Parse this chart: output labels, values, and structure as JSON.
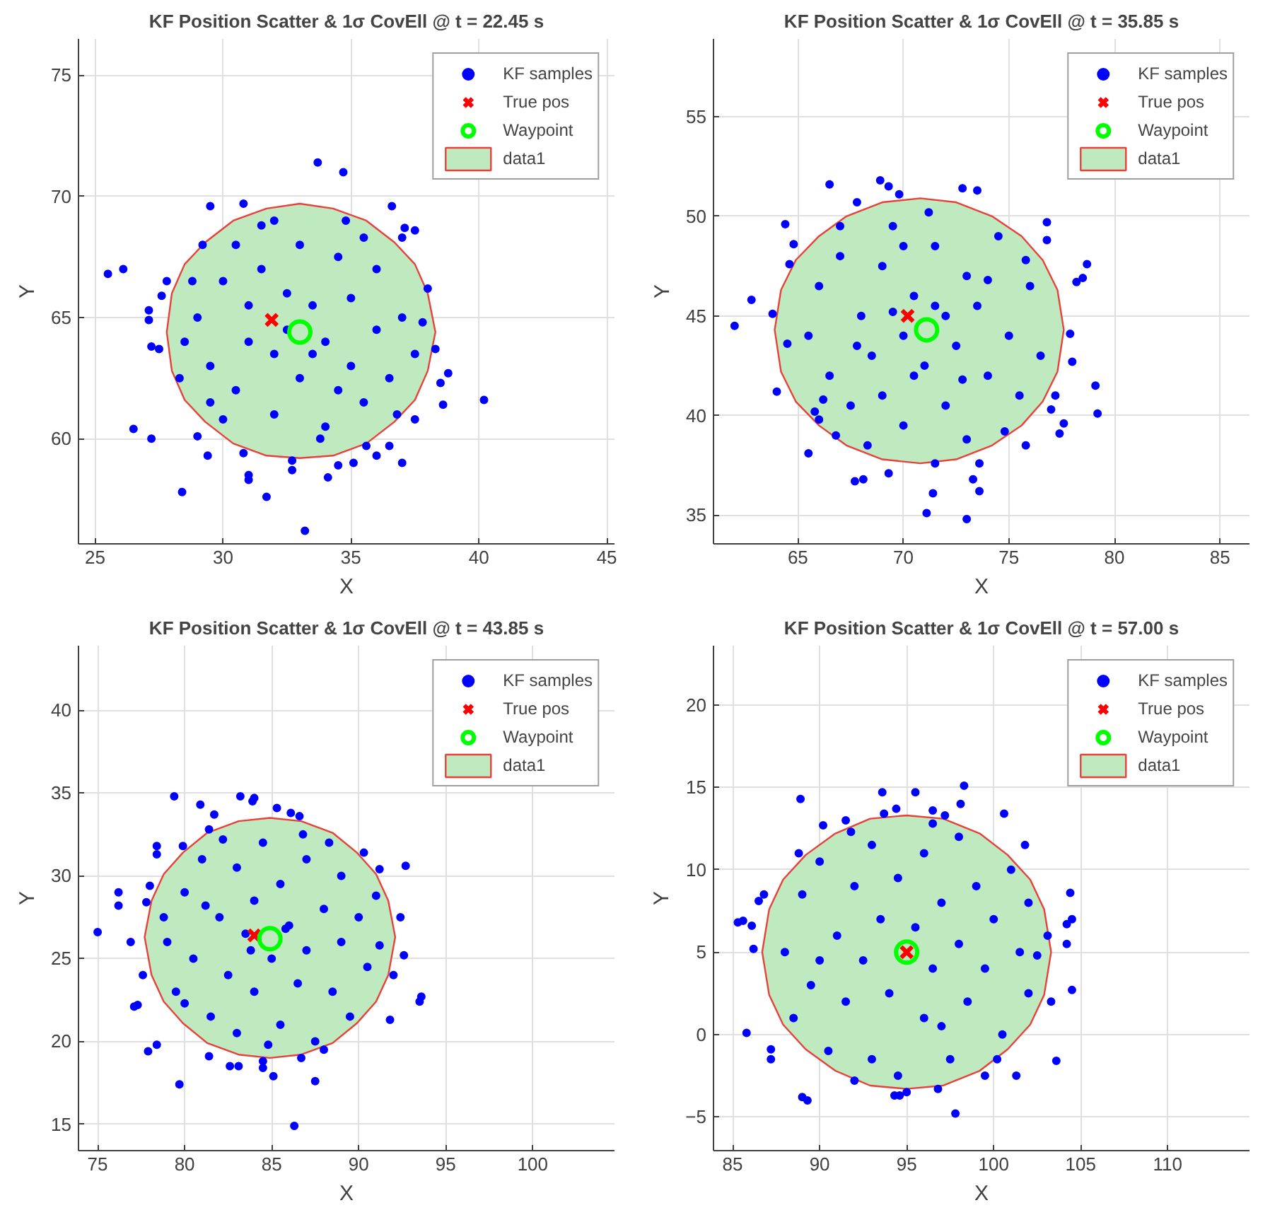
{
  "chart_data": [
    {
      "type": "scatter",
      "title": "KF Position Scatter & 1σ CovEll @ t = 22.45 s",
      "xlabel": "X",
      "ylabel": "Y",
      "xlim": [
        24.35,
        45.3
      ],
      "ylim": [
        55.66,
        76.5
      ],
      "xticks": [
        25,
        30,
        35,
        40,
        45
      ],
      "yticks": [
        60,
        65,
        70,
        75
      ],
      "grid": true,
      "legend": "top right",
      "series": [
        {
          "name": "KF samples",
          "color": "#0000ff",
          "marker": "circle",
          "x": [
            25.5,
            26.1,
            26.5,
            27.1,
            27.1,
            27.2,
            27.2,
            27.5,
            27.6,
            27.8,
            28.4,
            29.0,
            29.4,
            29.5,
            29.2,
            30.8,
            30.8,
            31.0,
            31.0,
            31.7,
            32.7,
            32.7,
            33.2,
            33.7,
            34.1,
            34.5,
            34.7,
            35.1,
            35.6,
            36.0,
            36.5,
            36.6,
            37.0,
            37.0,
            37.1,
            37.5,
            37.5,
            38.0,
            38.3,
            38.5,
            38.6,
            38.8,
            40.2,
            29,
            29.5,
            30,
            30.5,
            31,
            31.5,
            32,
            32,
            32.5,
            33,
            33,
            33.5,
            34,
            34,
            34.5,
            35,
            35,
            35.5,
            36,
            36,
            36.5,
            37,
            37.5,
            28.5,
            28.8,
            30,
            31.5,
            34.8,
            36.8,
            37.8,
            32.5,
            33.5,
            31,
            34.5,
            30.5,
            32,
            33.8,
            35.5,
            28.3,
            29.5
          ],
          "values": [
            66.8,
            67.0,
            60.4,
            65.3,
            64.9,
            60.0,
            63.8,
            63.7,
            65.9,
            66.5,
            57.8,
            60.1,
            59.3,
            69.6,
            68.0,
            69.7,
            59.4,
            58.5,
            58.3,
            57.6,
            58.7,
            59.1,
            56.2,
            71.4,
            58.4,
            58.9,
            71.0,
            59.0,
            59.7,
            59.3,
            59.7,
            69.6,
            59.0,
            68.3,
            68.7,
            68.6,
            60.8,
            66.2,
            63.7,
            62.3,
            61.4,
            62.7,
            61.6,
            65,
            63,
            66.5,
            62,
            64,
            67,
            61,
            63.5,
            66,
            68,
            62.5,
            65.5,
            64,
            60.5,
            67.5,
            63,
            65.8,
            61.5,
            64.5,
            67,
            62.5,
            65,
            63.5,
            64,
            66.5,
            60.8,
            68.8,
            69,
            61,
            64.8,
            64.5,
            63.5,
            65.5,
            62,
            68,
            69,
            60,
            68.3,
            62.5,
            61.5
          ]
        },
        {
          "name": "True pos",
          "color": "#ff0000",
          "marker": "cross",
          "x": [
            31.9
          ],
          "values": [
            64.9
          ]
        },
        {
          "name": "Waypoint",
          "color": "#00ff00",
          "marker": "circle",
          "x": [
            33.0
          ],
          "values": [
            64.4
          ]
        },
        {
          "name": "data1",
          "type": "area",
          "color": "#bfeabf",
          "x": [
            27.8,
            28.0,
            28.5,
            29.3,
            30.4,
            31.7,
            33,
            34.3,
            35.6,
            36.7,
            37.5,
            38.0,
            38.3,
            38.0,
            37.5,
            36.7,
            35.6,
            34.3,
            33,
            31.7,
            30.4,
            29.3,
            28.5,
            28.0
          ],
          "values": [
            64.4,
            66.0,
            67.2,
            68.1,
            69.0,
            69.5,
            69.7,
            69.5,
            69.0,
            68.1,
            67.2,
            66.0,
            64.4,
            62.8,
            61.6,
            60.7,
            59.8,
            59.3,
            59.2,
            59.3,
            59.8,
            60.7,
            61.6,
            62.8
          ]
        }
      ]
    },
    {
      "type": "scatter",
      "title": "KF Position Scatter & 1σ CovEll @ t = 35.85 s",
      "xlabel": "X",
      "ylabel": "Y",
      "xlim": [
        61.0,
        86.4
      ],
      "ylim": [
        33.56,
        58.9
      ],
      "xticks": [
        65,
        70,
        75,
        80,
        85
      ],
      "yticks": [
        35,
        40,
        45,
        50,
        55
      ],
      "grid": true,
      "legend": "top right",
      "series": [
        {
          "name": "KF samples",
          "color": "#0000ff",
          "marker": "circle",
          "x": [
            62,
            62.8,
            63.8,
            64,
            64.4,
            64.5,
            64.8,
            64.6,
            65.5,
            65.8,
            66.0,
            66.5,
            66.8,
            67.7,
            67.8,
            68.1,
            68.9,
            69.3,
            69.3,
            69.8,
            71.1,
            71.4,
            71.5,
            72.8,
            73.0,
            73.3,
            73.6,
            73.6,
            73.5,
            75.8,
            76.8,
            76.8,
            77.0,
            77.2,
            77.4,
            77.6,
            77.9,
            78.0,
            78.2,
            78.5,
            78.7,
            79.1,
            79.2,
            65.5,
            66,
            66.5,
            67,
            67.5,
            68,
            68.5,
            69,
            69,
            69.5,
            70,
            70,
            70.5,
            71,
            71.5,
            72,
            72,
            72.5,
            73,
            73,
            73.5,
            74,
            74.5,
            75,
            75.5,
            76,
            76.5,
            66.2,
            67,
            68.3,
            71.2,
            74.8,
            75.8,
            70.5,
            71.5,
            69.5,
            72.8,
            67.8,
            74,
            70
          ],
          "values": [
            44.5,
            45.8,
            45.1,
            41.2,
            49.6,
            43.6,
            48.6,
            47.6,
            38.1,
            40.2,
            39.8,
            51.6,
            39.0,
            36.7,
            50.7,
            36.8,
            51.8,
            37.1,
            51.5,
            51.1,
            35.1,
            36.1,
            37.6,
            51.4,
            34.8,
            36.8,
            37.6,
            36.2,
            51.3,
            38.5,
            49.7,
            48.8,
            40.3,
            41.0,
            39.1,
            39.6,
            44.1,
            42.7,
            46.7,
            46.9,
            47.6,
            41.5,
            40.1,
            44,
            46.5,
            42,
            48,
            40.5,
            45,
            43,
            47.5,
            41,
            49.5,
            44,
            39.5,
            46,
            42.5,
            48.5,
            45,
            40.5,
            43.5,
            47,
            38.8,
            45.5,
            42,
            49,
            44,
            41,
            46.5,
            43,
            40.8,
            49.5,
            38.5,
            50.2,
            39.2,
            47.8,
            42,
            45.5,
            45.2,
            41.8,
            43.5,
            46.8,
            48.5
          ]
        },
        {
          "name": "True pos",
          "color": "#ff0000",
          "marker": "cross",
          "x": [
            70.2
          ],
          "values": [
            45.0
          ]
        },
        {
          "name": "Waypoint",
          "color": "#00ff00",
          "marker": "circle",
          "x": [
            71.1
          ],
          "values": [
            44.3
          ]
        },
        {
          "name": "data1",
          "type": "area",
          "color": "#bfeabf",
          "x": [
            63.9,
            64.2,
            64.9,
            66.0,
            67.3,
            69.0,
            70.8,
            72.5,
            74.2,
            75.6,
            76.6,
            77.3,
            77.6,
            77.3,
            76.6,
            75.6,
            74.2,
            72.5,
            70.8,
            69.0,
            67.3,
            66.0,
            64.9,
            64.2
          ],
          "values": [
            44.3,
            46.3,
            47.8,
            49.0,
            50.0,
            50.7,
            50.9,
            50.7,
            50.0,
            49.0,
            47.8,
            46.3,
            44.3,
            42.2,
            40.7,
            39.5,
            38.5,
            37.8,
            37.6,
            37.8,
            38.5,
            39.5,
            40.7,
            42.2
          ]
        }
      ]
    },
    {
      "type": "scatter",
      "title": "KF Position Scatter & 1σ CovEll @ t = 43.85 s",
      "xlabel": "X",
      "ylabel": "Y",
      "xlim": [
        73.9,
        104.7
      ],
      "ylim": [
        13.4,
        43.9
      ],
      "xticks": [
        75,
        80,
        85,
        90,
        95,
        100
      ],
      "yticks": [
        15,
        20,
        25,
        30,
        35,
        40
      ],
      "grid": true,
      "legend": "top right",
      "series": [
        {
          "name": "KF samples",
          "color": "#0000ff",
          "marker": "circle",
          "x": [
            75.0,
            76.2,
            76.2,
            76.9,
            77.1,
            77.3,
            77.6,
            77.8,
            78.0,
            77.9,
            78.4,
            78.4,
            78.4,
            79.4,
            79.7,
            79.9,
            80.9,
            81.4,
            81.4,
            81.7,
            82.6,
            83.1,
            83.2,
            83.9,
            84.0,
            84.5,
            84.5,
            85.1,
            85.3,
            86.1,
            86.3,
            86.6,
            86.7,
            87.5,
            88.0,
            90.3,
            91.2,
            91.8,
            92.0,
            92.4,
            92.6,
            92.7,
            93.5,
            93.6,
            79,
            79.5,
            80,
            80.5,
            81,
            81.5,
            82,
            82.5,
            83,
            83,
            83.5,
            84,
            84,
            84.5,
            85,
            85.5,
            85.5,
            86,
            86.5,
            87,
            87,
            87.5,
            88,
            88.5,
            89,
            89,
            89.5,
            90,
            90.5,
            91,
            80,
            81.2,
            84.8,
            86.8,
            88.3,
            82.2,
            83.8,
            85.8,
            78.8,
            91.2
          ],
          "values": [
            26.6,
            29.0,
            28.2,
            26.0,
            22.1,
            22.2,
            24.0,
            28.4,
            29.4,
            19.4,
            19.8,
            31.8,
            31.3,
            34.8,
            17.4,
            31.8,
            34.3,
            19.1,
            32.8,
            33.7,
            18.5,
            18.5,
            34.8,
            34.5,
            34.7,
            18.8,
            18.4,
            17.9,
            34.1,
            33.8,
            14.9,
            33.6,
            19.0,
            17.6,
            19.5,
            31.4,
            30.4,
            21.3,
            24.0,
            27.5,
            25.2,
            30.6,
            22.4,
            22.7,
            26,
            23,
            29,
            25,
            31,
            21.5,
            27.5,
            24,
            30.5,
            20.5,
            26.5,
            28.5,
            23,
            32,
            25,
            29.5,
            21,
            27,
            23.5,
            31,
            25.5,
            20,
            28,
            23,
            30,
            26,
            21.5,
            27.5,
            24.5,
            28.8,
            22.3,
            28.2,
            19.8,
            32.5,
            32,
            32.2,
            25.5,
            26.8,
            27.5,
            25.8
          ]
        },
        {
          "name": "True pos",
          "color": "#ff0000",
          "marker": "cross",
          "x": [
            84.0
          ],
          "values": [
            26.4
          ]
        },
        {
          "name": "Waypoint",
          "color": "#00ff00",
          "marker": "circle",
          "x": [
            84.9
          ],
          "values": [
            26.2
          ]
        },
        {
          "name": "data1",
          "type": "area",
          "color": "#bfeabf",
          "x": [
            77.7,
            78.1,
            78.8,
            79.9,
            81.3,
            83.1,
            84.9,
            86.7,
            88.5,
            89.9,
            91.0,
            91.7,
            92.1,
            91.7,
            91.0,
            89.9,
            88.5,
            86.7,
            84.9,
            83.1,
            81.3,
            79.9,
            78.8,
            78.1
          ],
          "values": [
            26.3,
            28.5,
            30.1,
            31.4,
            32.6,
            33.3,
            33.5,
            33.3,
            32.6,
            31.4,
            30.1,
            28.5,
            26.3,
            24.0,
            22.4,
            21.1,
            19.9,
            19.2,
            19.0,
            19.2,
            19.9,
            21.1,
            22.4,
            24.0
          ]
        }
      ]
    },
    {
      "type": "scatter",
      "title": "KF Position Scatter & 1σ CovEll @ t = 57.00 s",
      "xlabel": "X",
      "ylabel": "Y",
      "xlim": [
        83.9,
        114.7
      ],
      "ylim": [
        -7.05,
        23.6
      ],
      "xticks": [
        85,
        90,
        95,
        100,
        105,
        110
      ],
      "yticks": [
        -5,
        0,
        5,
        10,
        15,
        20
      ],
      "grid": true,
      "legend": "top right",
      "series": [
        {
          "name": "KF samples",
          "color": "#0000ff",
          "marker": "circle",
          "x": [
            85.3,
            85.6,
            85.8,
            86.1,
            86.2,
            86.5,
            86.8,
            87.2,
            87.2,
            88.9,
            89.0,
            89.3,
            90.2,
            91.5,
            93.6,
            93.7,
            94.3,
            94.4,
            94.6,
            95.0,
            95.5,
            96.5,
            97.2,
            97.8,
            98.1,
            98.3,
            100.6,
            101.3,
            101.8,
            103.1,
            103.3,
            103.6,
            104.2,
            104.2,
            104.4,
            104.5,
            104.5,
            100.2,
            96.8,
            91.8,
            88,
            88.5,
            89,
            89.5,
            90,
            90.5,
            91,
            91.5,
            92,
            92.5,
            93,
            93,
            93.5,
            94,
            94.5,
            94.5,
            95.5,
            96,
            96,
            96.5,
            97,
            97.5,
            98,
            98,
            98.5,
            99,
            99.5,
            100,
            100.5,
            101,
            101.5,
            102,
            102,
            92,
            96.5,
            90,
            97,
            99.5,
            88.8,
            102.5
          ],
          "values": [
            6.8,
            6.9,
            0.1,
            6.6,
            5.2,
            8.1,
            8.5,
            -0.9,
            -1.5,
            14.3,
            -3.8,
            -4.0,
            12.7,
            13.0,
            14.7,
            13.4,
            -3.7,
            13.7,
            -3.7,
            -3.5,
            14.7,
            13.6,
            13.3,
            -4.8,
            14.0,
            15.1,
            13.4,
            -2.5,
            11.5,
            6.0,
            2.0,
            -1.6,
            6.7,
            5.5,
            8.6,
            7.0,
            2.7,
            -1.5,
            -3.3,
            12.3,
            5,
            1,
            8.5,
            3,
            10.5,
            -1,
            6,
            2,
            9,
            4.5,
            11.5,
            -1.5,
            7,
            2.5,
            9.5,
            -2.5,
            6.5,
            1,
            11,
            4,
            8,
            -1.5,
            5.5,
            12,
            2,
            9,
            4,
            7,
            0,
            10,
            5,
            2.5,
            8,
            -2.8,
            12.8,
            4.5,
            0.5,
            -2.5,
            11,
            4.8
          ]
        },
        {
          "name": "True pos",
          "color": "#ff0000",
          "marker": "cross",
          "x": [
            95.0
          ],
          "values": [
            5.0
          ]
        },
        {
          "name": "Waypoint",
          "color": "#00ff00",
          "marker": "circle",
          "x": [
            95.0
          ],
          "values": [
            5.0
          ]
        },
        {
          "name": "data1",
          "type": "area",
          "color": "#bfeabf",
          "x": [
            86.7,
            87.1,
            87.9,
            89.2,
            90.9,
            92.9,
            95,
            97.1,
            99.2,
            100.8,
            102.1,
            102.9,
            103.3,
            102.9,
            102.1,
            100.8,
            99.2,
            97.1,
            95,
            92.9,
            90.9,
            89.2,
            87.9,
            87.1
          ],
          "values": [
            5,
            7.6,
            9.4,
            10.9,
            12.2,
            13.1,
            13.3,
            13.1,
            12.2,
            10.9,
            9.4,
            7.6,
            5,
            2.4,
            0.6,
            -0.9,
            -2.2,
            -3.1,
            -3.3,
            -3.1,
            -2.2,
            -0.9,
            0.6,
            2.4
          ]
        }
      ]
    }
  ]
}
